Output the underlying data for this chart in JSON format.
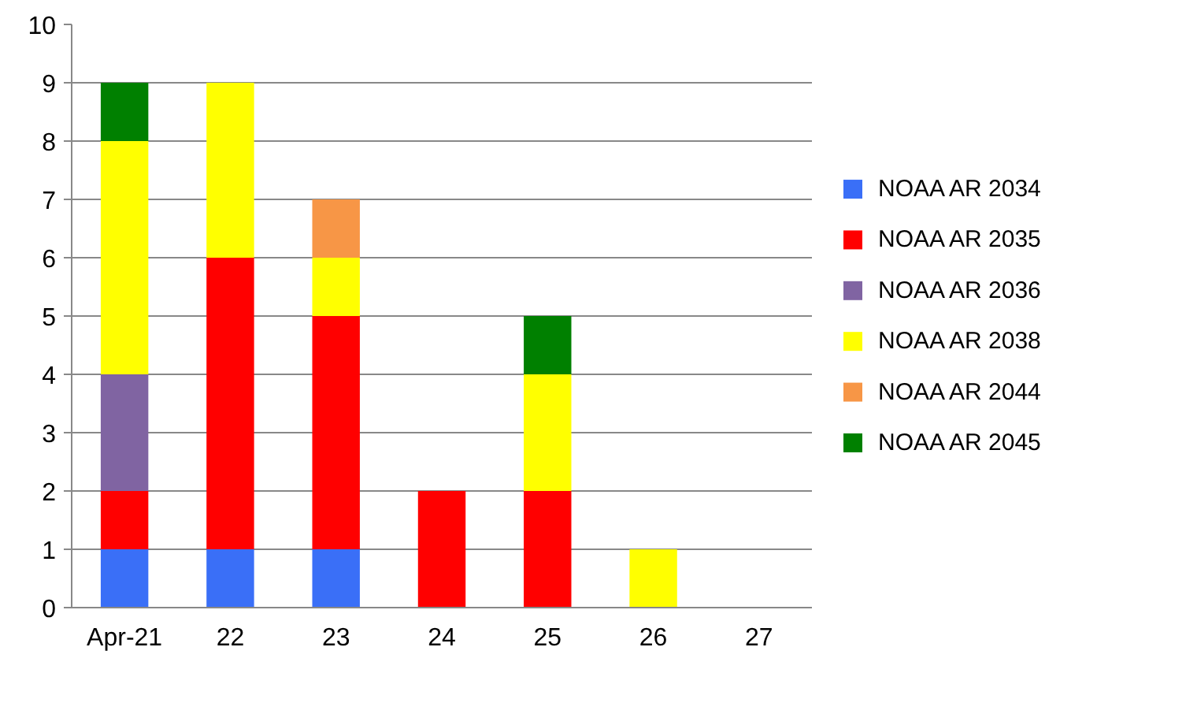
{
  "chart_data": {
    "type": "bar",
    "stacked": true,
    "categories": [
      "Apr-21",
      "22",
      "23",
      "24",
      "25",
      "26",
      "27"
    ],
    "series": [
      {
        "name": "NOAA AR 2034",
        "color": "#3a6ff7",
        "values": [
          1,
          1,
          1,
          null,
          null,
          null,
          null
        ]
      },
      {
        "name": "NOAA AR 2035",
        "color": "#ff0000",
        "values": [
          1,
          5,
          4,
          2,
          2,
          null,
          null
        ]
      },
      {
        "name": "NOAA AR 2036",
        "color": "#8064a2",
        "values": [
          2,
          null,
          null,
          null,
          null,
          null,
          null
        ]
      },
      {
        "name": "NOAA AR 2038",
        "color": "#ffff00",
        "values": [
          4,
          3,
          1,
          null,
          2,
          1,
          null
        ]
      },
      {
        "name": "NOAA AR 2044",
        "color": "#f79646",
        "values": [
          null,
          null,
          1,
          null,
          null,
          null,
          null
        ]
      },
      {
        "name": "NOAA AR 2045",
        "color": "#008000",
        "values": [
          1,
          null,
          null,
          null,
          1,
          null,
          null
        ]
      }
    ],
    "ylim": [
      0,
      10
    ],
    "yticks": [
      0,
      1,
      2,
      3,
      4,
      5,
      6,
      7,
      8,
      9,
      10
    ],
    "grid": "y",
    "legend": "right"
  }
}
